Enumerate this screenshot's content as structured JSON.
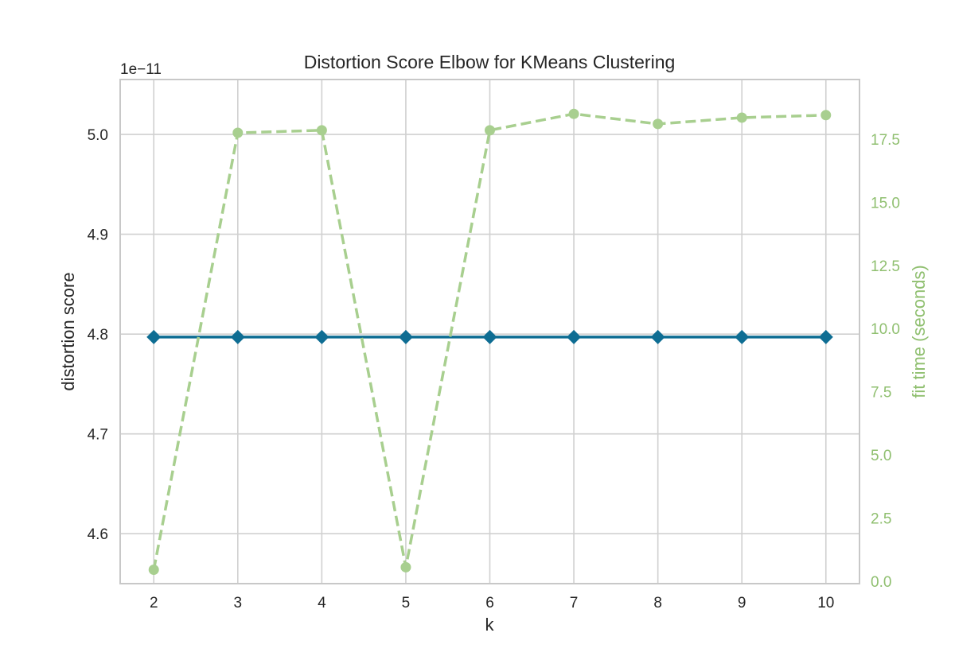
{
  "chart_data": {
    "type": "line",
    "title": "Distortion Score Elbow for KMeans Clustering",
    "xlabel": "k",
    "ylabel": "distortion score",
    "y2label": "fit time (seconds)",
    "y_offset_label": "1e−11",
    "x": [
      2,
      3,
      4,
      5,
      6,
      7,
      8,
      9,
      10
    ],
    "xlim": [
      1.6,
      10.4
    ],
    "xticks": [
      2,
      3,
      4,
      5,
      6,
      7,
      8,
      9,
      10
    ],
    "ylim": [
      4.55,
      5.055
    ],
    "yticks": [
      4.6,
      4.7,
      4.8,
      4.9,
      5.0
    ],
    "ytick_labels": [
      "4.6",
      "4.7",
      "4.8",
      "4.9",
      "5.0"
    ],
    "y2lim": [
      -0.1,
      19.86
    ],
    "y2ticks": [
      0.0,
      2.5,
      5.0,
      7.5,
      10.0,
      12.5,
      15.0,
      17.5
    ],
    "y2tick_labels": [
      "0.0",
      "2.5",
      "5.0",
      "7.5",
      "10.0",
      "12.5",
      "15.0",
      "17.5"
    ],
    "grid": true,
    "series": [
      {
        "axis": "left",
        "color": "#0e6d93",
        "marker": "diamond",
        "style": "solid",
        "values": [
          4.797,
          4.797,
          4.797,
          4.797,
          4.797,
          4.797,
          4.797,
          4.797,
          4.797
        ]
      },
      {
        "axis": "right",
        "color": "#a8cf8f",
        "marker": "circle",
        "style": "dashed",
        "values": [
          0.45,
          17.75,
          17.85,
          0.55,
          17.85,
          18.5,
          18.1,
          18.35,
          18.45
        ]
      }
    ]
  },
  "colors": {
    "grid": "#d0d0d0",
    "frame": "#c8c8c8",
    "text": "#262626",
    "right_axis_text": "#8fbf6f"
  }
}
